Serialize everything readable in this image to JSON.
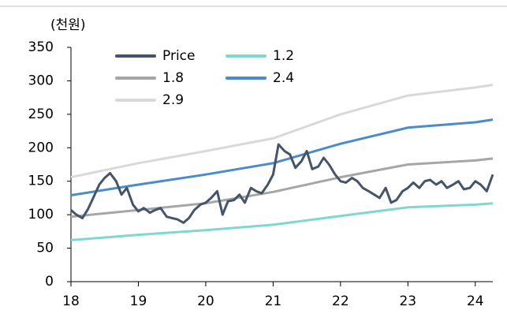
{
  "chart_data": {
    "type": "line",
    "y_label": "(천원)",
    "xlim": [
      18,
      24.26
    ],
    "xticks": [
      18,
      19,
      20,
      21,
      22,
      23,
      24
    ],
    "ylim": [
      0,
      350
    ],
    "yticks": [
      0,
      50,
      100,
      150,
      200,
      250,
      300,
      350
    ],
    "grid": false,
    "legend": "top-left",
    "series": [
      {
        "name": "Price",
        "color": "#44546a",
        "x": [
          18.0,
          18.08,
          18.17,
          18.25,
          18.33,
          18.42,
          18.5,
          18.58,
          18.67,
          18.75,
          18.83,
          18.92,
          19.0,
          19.08,
          19.17,
          19.25,
          19.33,
          19.42,
          19.5,
          19.58,
          19.67,
          19.75,
          19.83,
          19.92,
          20.0,
          20.08,
          20.17,
          20.25,
          20.33,
          20.42,
          20.5,
          20.58,
          20.67,
          20.75,
          20.83,
          20.92,
          21.0,
          21.08,
          21.17,
          21.25,
          21.33,
          21.42,
          21.5,
          21.58,
          21.67,
          21.75,
          21.83,
          21.92,
          22.0,
          22.08,
          22.17,
          22.25,
          22.33,
          22.42,
          22.5,
          22.58,
          22.67,
          22.75,
          22.83,
          22.92,
          23.0,
          23.08,
          23.17,
          23.25,
          23.33,
          23.42,
          23.5,
          23.58,
          23.67,
          23.75,
          23.83,
          23.92,
          24.0,
          24.08,
          24.17,
          24.26
        ],
        "values": [
          107,
          100,
          95,
          108,
          125,
          145,
          155,
          162,
          150,
          130,
          140,
          115,
          105,
          110,
          103,
          107,
          110,
          97,
          95,
          93,
          88,
          95,
          107,
          115,
          118,
          125,
          135,
          100,
          120,
          122,
          130,
          118,
          140,
          135,
          132,
          145,
          160,
          205,
          195,
          190,
          170,
          180,
          195,
          168,
          172,
          185,
          175,
          160,
          150,
          148,
          155,
          150,
          140,
          135,
          130,
          125,
          140,
          118,
          122,
          135,
          140,
          148,
          140,
          150,
          152,
          145,
          150,
          140,
          145,
          150,
          138,
          140,
          150,
          145,
          135,
          160
        ]
      },
      {
        "name": "1.2",
        "color": "#7fd8d0",
        "x": [
          18,
          19,
          20,
          21,
          22,
          23,
          24,
          24.26
        ],
        "values": [
          62,
          70,
          77,
          85,
          98,
          111,
          115,
          117
        ]
      },
      {
        "name": "1.8",
        "color": "#a6a6a6",
        "x": [
          18,
          19,
          20,
          21,
          22,
          23,
          24,
          24.26
        ],
        "values": [
          97,
          107,
          117,
          134,
          156,
          175,
          181,
          184
        ]
      },
      {
        "name": "2.4",
        "color": "#4a8bc9",
        "x": [
          18,
          19,
          20,
          21,
          22,
          23,
          24,
          24.26
        ],
        "values": [
          129,
          145,
          160,
          177,
          206,
          230,
          238,
          242
        ]
      },
      {
        "name": "2.9",
        "color": "#d9d9d9",
        "x": [
          18,
          19,
          20,
          21,
          22,
          23,
          24,
          24.26
        ],
        "values": [
          156,
          177,
          195,
          214,
          250,
          278,
          290,
          294
        ]
      }
    ]
  }
}
